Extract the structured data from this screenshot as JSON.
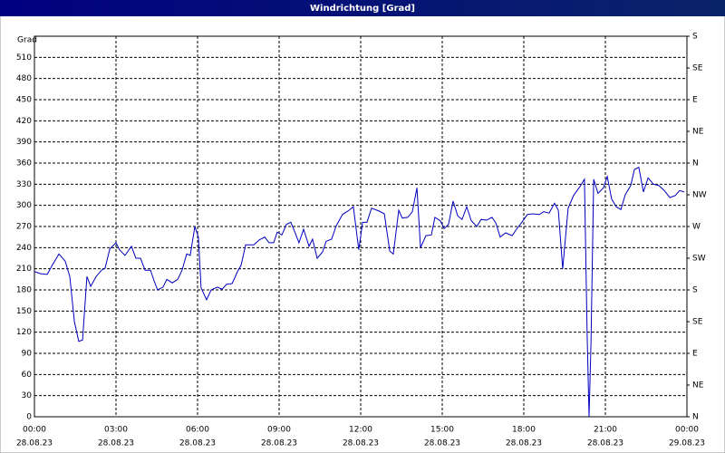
{
  "chart_data": {
    "type": "line",
    "title": "Windrichtung [Grad]",
    "y_label": "Grad",
    "x": [
      0,
      0.23,
      0.47,
      0.67,
      0.9,
      1.13,
      1.3,
      1.47,
      1.63,
      1.77,
      1.93,
      2.07,
      2.27,
      2.47,
      2.6,
      2.77,
      3.0,
      3.13,
      3.33,
      3.57,
      3.73,
      3.9,
      4.07,
      4.27,
      4.4,
      4.53,
      4.73,
      4.87,
      5.07,
      5.27,
      5.43,
      5.6,
      5.73,
      5.9,
      6.03,
      6.13,
      6.33,
      6.5,
      6.73,
      6.9,
      7.07,
      7.27,
      7.47,
      7.6,
      7.77,
      8.07,
      8.27,
      8.47,
      8.63,
      8.8,
      8.93,
      9.1,
      9.27,
      9.43,
      9.6,
      9.73,
      9.9,
      10.1,
      10.23,
      10.4,
      10.6,
      10.73,
      10.93,
      11.1,
      11.33,
      11.57,
      11.73,
      11.93,
      12.07,
      12.23,
      12.4,
      12.67,
      12.87,
      13.07,
      13.2,
      13.4,
      13.53,
      13.73,
      13.9,
      14.07,
      14.2,
      14.4,
      14.6,
      14.73,
      14.93,
      15.07,
      15.23,
      15.4,
      15.57,
      15.73,
      15.9,
      16.07,
      16.27,
      16.43,
      16.63,
      16.83,
      16.97,
      17.13,
      17.33,
      17.57,
      17.73,
      17.93,
      18.13,
      18.33,
      18.57,
      18.73,
      18.93,
      19.13,
      19.27,
      19.43,
      19.63,
      19.83,
      20.07,
      20.23,
      20.33,
      20.4,
      20.47,
      20.57,
      20.73,
      20.93,
      21.07,
      21.23,
      21.4,
      21.57,
      21.73,
      21.93,
      22.07,
      22.23,
      22.4,
      22.57,
      22.77,
      22.97,
      23.17,
      23.37,
      23.57,
      23.73,
      23.9
    ],
    "series": [
      {
        "name": "Windrichtung",
        "color": "#0000c0",
        "values": [
          206,
          203,
          202,
          216,
          231,
          221,
          199,
          135,
          107,
          109,
          199,
          185,
          199,
          208,
          211,
          238,
          247,
          237,
          229,
          242,
          225,
          225,
          208,
          208,
          193,
          180,
          184,
          195,
          190,
          195,
          208,
          231,
          229,
          270,
          255,
          183,
          166,
          180,
          184,
          181,
          188,
          189,
          206,
          215,
          244,
          244,
          251,
          255,
          247,
          247,
          262,
          258,
          273,
          276,
          260,
          247,
          266,
          242,
          252,
          225,
          234,
          249,
          252,
          271,
          287,
          293,
          298,
          237,
          276,
          276,
          296,
          292,
          288,
          235,
          231,
          293,
          282,
          283,
          291,
          325,
          240,
          257,
          258,
          283,
          278,
          267,
          273,
          306,
          285,
          280,
          298,
          278,
          270,
          280,
          279,
          283,
          275,
          255,
          261,
          257,
          266,
          276,
          287,
          288,
          287,
          291,
          289,
          303,
          293,
          210,
          296,
          314,
          327,
          337,
          116,
          0,
          103,
          337,
          317,
          325,
          341,
          309,
          298,
          294,
          315,
          328,
          351,
          354,
          319,
          339,
          330,
          328,
          321,
          311,
          314,
          321,
          319
        ]
      }
    ],
    "xlim": [
      0,
      24
    ],
    "xticks": [
      {
        "value": 0,
        "label": "00:00"
      },
      {
        "value": 3,
        "label": "03:00"
      },
      {
        "value": 6,
        "label": "06:00"
      },
      {
        "value": 9,
        "label": "09:00"
      },
      {
        "value": 12,
        "label": "12:00"
      },
      {
        "value": 15,
        "label": "15:00"
      },
      {
        "value": 18,
        "label": "18:00"
      },
      {
        "value": 21,
        "label": "21:00"
      },
      {
        "value": 24,
        "label": "00:00"
      }
    ],
    "xtick_dates": [
      "28.08.23",
      "28.08.23",
      "28.08.23",
      "28.08.23",
      "28.08.23",
      "28.08.23",
      "28.08.23",
      "28.08.23",
      "29.08.23"
    ],
    "ylim": [
      0,
      540
    ],
    "yticks": [
      0,
      30,
      60,
      90,
      120,
      150,
      180,
      210,
      240,
      270,
      300,
      330,
      360,
      390,
      420,
      450,
      480,
      510
    ],
    "y2lim": [
      0,
      540
    ],
    "y2ticks": [
      {
        "value": 0,
        "label": "N"
      },
      {
        "value": 45,
        "label": "NE"
      },
      {
        "value": 90,
        "label": "E"
      },
      {
        "value": 135,
        "label": "SE"
      },
      {
        "value": 180,
        "label": "S"
      },
      {
        "value": 225,
        "label": "SW"
      },
      {
        "value": 270,
        "label": "W"
      },
      {
        "value": 315,
        "label": "NW"
      },
      {
        "value": 360,
        "label": "N"
      },
      {
        "value": 405,
        "label": "NE"
      },
      {
        "value": 450,
        "label": "E"
      },
      {
        "value": 495,
        "label": "SE"
      },
      {
        "value": 540,
        "label": "S"
      }
    ],
    "grid": true
  }
}
